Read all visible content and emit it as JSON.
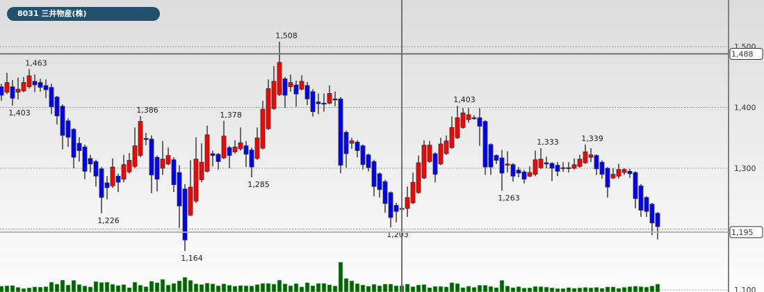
{
  "header": {
    "title": "8031 三井物産(株)"
  },
  "colors": {
    "up": "#ff0000",
    "down": "#0000ff",
    "volume": "#006400",
    "title_bg": "#22506f",
    "wick": "#666666"
  },
  "crosshair": {
    "price_top": 1488,
    "price_top_label": "1,488",
    "price_bottom": 1195,
    "price_bottom_label": "1,195"
  },
  "chart_data": {
    "type": "candlestick",
    "title": "8031 三井物産(株)",
    "ylim": [
      1100,
      1500
    ],
    "yticks": [
      1100,
      1200,
      1300,
      1400,
      1500
    ],
    "ytick_labels": [
      "1,100",
      "",
      "1,300",
      "1,400",
      "1,500"
    ],
    "grid": true,
    "axis_position": "right",
    "ohlc_fields": [
      "open",
      "high",
      "low",
      "close"
    ],
    "ohlc": [
      [
        1434,
        1439,
        1411,
        1420
      ],
      [
        1425,
        1457,
        1422,
        1441
      ],
      [
        1434,
        1445,
        1403,
        1415
      ],
      [
        1425,
        1449,
        1413,
        1430
      ],
      [
        1427,
        1450,
        1425,
        1441
      ],
      [
        1434,
        1463,
        1431,
        1452
      ],
      [
        1443,
        1454,
        1425,
        1437
      ],
      [
        1441,
        1447,
        1426,
        1433
      ],
      [
        1436,
        1446,
        1415,
        1429
      ],
      [
        1433,
        1439,
        1389,
        1401
      ],
      [
        1417,
        1419,
        1372,
        1386
      ],
      [
        1402,
        1405,
        1331,
        1354
      ],
      [
        1378,
        1382,
        1335,
        1351
      ],
      [
        1364,
        1366,
        1300,
        1318
      ],
      [
        1341,
        1351,
        1311,
        1329
      ],
      [
        1335,
        1339,
        1282,
        1295
      ],
      [
        1316,
        1322,
        1293,
        1307
      ],
      [
        1311,
        1314,
        1270,
        1287
      ],
      [
        1299,
        1302,
        1226,
        1252
      ],
      [
        1276,
        1287,
        1249,
        1268
      ],
      [
        1271,
        1316,
        1268,
        1302
      ],
      [
        1287,
        1291,
        1261,
        1277
      ],
      [
        1282,
        1322,
        1277,
        1306
      ],
      [
        1294,
        1325,
        1291,
        1313
      ],
      [
        1303,
        1367,
        1300,
        1337
      ],
      [
        1321,
        1386,
        1318,
        1377
      ],
      [
        1349,
        1358,
        1338,
        1348
      ],
      [
        1348,
        1354,
        1259,
        1289
      ],
      [
        1318,
        1321,
        1262,
        1282
      ],
      [
        1300,
        1345,
        1289,
        1315
      ],
      [
        1307,
        1334,
        1305,
        1321
      ],
      [
        1314,
        1318,
        1261,
        1273
      ],
      [
        1293,
        1305,
        1202,
        1238
      ],
      [
        1266,
        1274,
        1164,
        1182
      ],
      [
        1223,
        1313,
        1221,
        1269
      ],
      [
        1246,
        1351,
        1243,
        1315
      ],
      [
        1281,
        1341,
        1277,
        1310
      ],
      [
        1295,
        1370,
        1293,
        1355
      ],
      [
        1324,
        1329,
        1303,
        1321
      ],
      [
        1323,
        1325,
        1298,
        1311
      ],
      [
        1317,
        1378,
        1315,
        1353
      ],
      [
        1334,
        1337,
        1300,
        1321
      ],
      [
        1327,
        1346,
        1324,
        1335
      ],
      [
        1332,
        1367,
        1329,
        1342
      ],
      [
        1337,
        1345,
        1302,
        1323
      ],
      [
        1330,
        1334,
        1285,
        1302
      ],
      [
        1316,
        1367,
        1314,
        1350
      ],
      [
        1333,
        1411,
        1331,
        1397
      ],
      [
        1365,
        1446,
        1363,
        1431
      ],
      [
        1398,
        1468,
        1396,
        1443
      ],
      [
        1421,
        1508,
        1419,
        1474
      ],
      [
        1447,
        1450,
        1399,
        1420
      ],
      [
        1434,
        1454,
        1426,
        1441
      ],
      [
        1437,
        1444,
        1401,
        1422
      ],
      [
        1430,
        1453,
        1428,
        1443
      ],
      [
        1436,
        1442,
        1404,
        1414
      ],
      [
        1426,
        1430,
        1385,
        1393
      ],
      [
        1409,
        1423,
        1389,
        1406
      ],
      [
        1407,
        1423,
        1393,
        1406
      ],
      [
        1407,
        1436,
        1405,
        1423
      ],
      [
        1414,
        1426,
        1402,
        1413
      ],
      [
        1414,
        1417,
        1292,
        1305
      ],
      [
        1359,
        1362,
        1301,
        1324
      ],
      [
        1341,
        1350,
        1332,
        1345
      ],
      [
        1343,
        1346,
        1318,
        1329
      ],
      [
        1337,
        1339,
        1298,
        1306
      ],
      [
        1322,
        1324,
        1295,
        1301
      ],
      [
        1311,
        1314,
        1254,
        1270
      ],
      [
        1291,
        1293,
        1252,
        1265
      ],
      [
        1278,
        1281,
        1227,
        1242
      ],
      [
        1260,
        1262,
        1203,
        1219
      ],
      [
        1239,
        1243,
        1211,
        1229
      ],
      [
        1234,
        1238,
        1227,
        1234
      ],
      [
        1234,
        1270,
        1220,
        1252
      ],
      [
        1243,
        1293,
        1241,
        1277
      ],
      [
        1260,
        1321,
        1258,
        1309
      ],
      [
        1284,
        1346,
        1282,
        1338
      ],
      [
        1311,
        1345,
        1309,
        1338
      ],
      [
        1324,
        1326,
        1277,
        1290
      ],
      [
        1307,
        1350,
        1305,
        1340
      ],
      [
        1324,
        1354,
        1322,
        1345
      ],
      [
        1334,
        1385,
        1332,
        1367
      ],
      [
        1350,
        1403,
        1348,
        1383
      ],
      [
        1367,
        1399,
        1365,
        1391
      ],
      [
        1380,
        1399,
        1375,
        1388
      ],
      [
        1383,
        1387,
        1380,
        1383
      ],
      [
        1383,
        1399,
        1337,
        1369
      ],
      [
        1377,
        1379,
        1289,
        1302
      ],
      [
        1339,
        1341,
        1289,
        1302
      ],
      [
        1321,
        1323,
        1307,
        1313
      ],
      [
        1317,
        1330,
        1263,
        1292
      ],
      [
        1305,
        1328,
        1293,
        1307
      ],
      [
        1306,
        1308,
        1278,
        1287
      ],
      [
        1297,
        1302,
        1285,
        1292
      ],
      [
        1294,
        1297,
        1275,
        1282
      ],
      [
        1287,
        1303,
        1285,
        1293
      ],
      [
        1290,
        1329,
        1287,
        1314
      ],
      [
        1301,
        1333,
        1299,
        1315
      ],
      [
        1309,
        1319,
        1300,
        1307
      ],
      [
        1308,
        1310,
        1279,
        1300
      ],
      [
        1305,
        1310,
        1287,
        1295
      ],
      [
        1300,
        1310,
        1294,
        1301
      ],
      [
        1301,
        1310,
        1293,
        1301
      ],
      [
        1300,
        1316,
        1298,
        1306
      ],
      [
        1303,
        1322,
        1301,
        1315
      ],
      [
        1309,
        1339,
        1307,
        1327
      ],
      [
        1318,
        1333,
        1310,
        1322
      ],
      [
        1321,
        1323,
        1289,
        1299
      ],
      [
        1310,
        1313,
        1283,
        1290
      ],
      [
        1300,
        1302,
        1252,
        1269
      ],
      [
        1284,
        1300,
        1282,
        1290
      ],
      [
        1287,
        1307,
        1283,
        1298
      ],
      [
        1293,
        1300,
        1289,
        1298
      ],
      [
        1295,
        1299,
        1284,
        1291
      ],
      [
        1293,
        1295,
        1234,
        1250
      ],
      [
        1271,
        1274,
        1220,
        1231
      ],
      [
        1252,
        1254,
        1220,
        1229
      ],
      [
        1241,
        1243,
        1190,
        1210
      ],
      [
        1226,
        1228,
        1183,
        1204
      ]
    ],
    "volume": [
      25,
      27,
      28,
      20,
      15,
      18,
      22,
      21,
      23,
      42,
      34,
      51,
      30,
      50,
      32,
      26,
      22,
      45,
      41,
      42,
      33,
      28,
      32,
      19,
      42,
      29,
      23,
      46,
      40,
      54,
      30,
      37,
      48,
      63,
      50,
      35,
      32,
      38,
      35,
      27,
      35,
      29,
      25,
      28,
      27,
      26,
      32,
      37,
      37,
      34,
      51,
      35,
      27,
      36,
      22,
      40,
      27,
      37,
      37,
      31,
      26,
      128,
      58,
      48,
      36,
      30,
      25,
      33,
      27,
      34,
      34,
      27,
      27,
      34,
      23,
      30,
      32,
      19,
      24,
      24,
      22,
      40,
      36,
      19,
      25,
      20,
      29,
      29,
      24,
      19,
      50,
      26,
      19,
      23,
      17,
      18,
      24,
      23,
      21,
      18,
      15,
      15,
      19,
      16,
      18,
      20,
      18,
      20,
      16,
      22,
      22,
      16,
      20,
      23,
      25,
      23,
      21,
      26,
      34
    ],
    "annotations": [
      {
        "index": 5,
        "kind": "high",
        "text": "1,463"
      },
      {
        "index": 2,
        "kind": "low",
        "text": "1,403"
      },
      {
        "index": 25,
        "kind": "high",
        "text": "1,386"
      },
      {
        "index": 18,
        "kind": "low",
        "text": "1,226"
      },
      {
        "index": 33,
        "kind": "low",
        "text": "1,164"
      },
      {
        "index": 40,
        "kind": "high",
        "text": "1,378"
      },
      {
        "index": 45,
        "kind": "low",
        "text": "1,285"
      },
      {
        "index": 50,
        "kind": "high",
        "text": "1,508"
      },
      {
        "index": 70,
        "kind": "low",
        "text": "1,203"
      },
      {
        "index": 82,
        "kind": "high",
        "text": "1,403"
      },
      {
        "index": 90,
        "kind": "low",
        "text": "1,263"
      },
      {
        "index": 97,
        "kind": "high",
        "text": "1,333"
      },
      {
        "index": 105,
        "kind": "high",
        "text": "1,339"
      }
    ]
  }
}
